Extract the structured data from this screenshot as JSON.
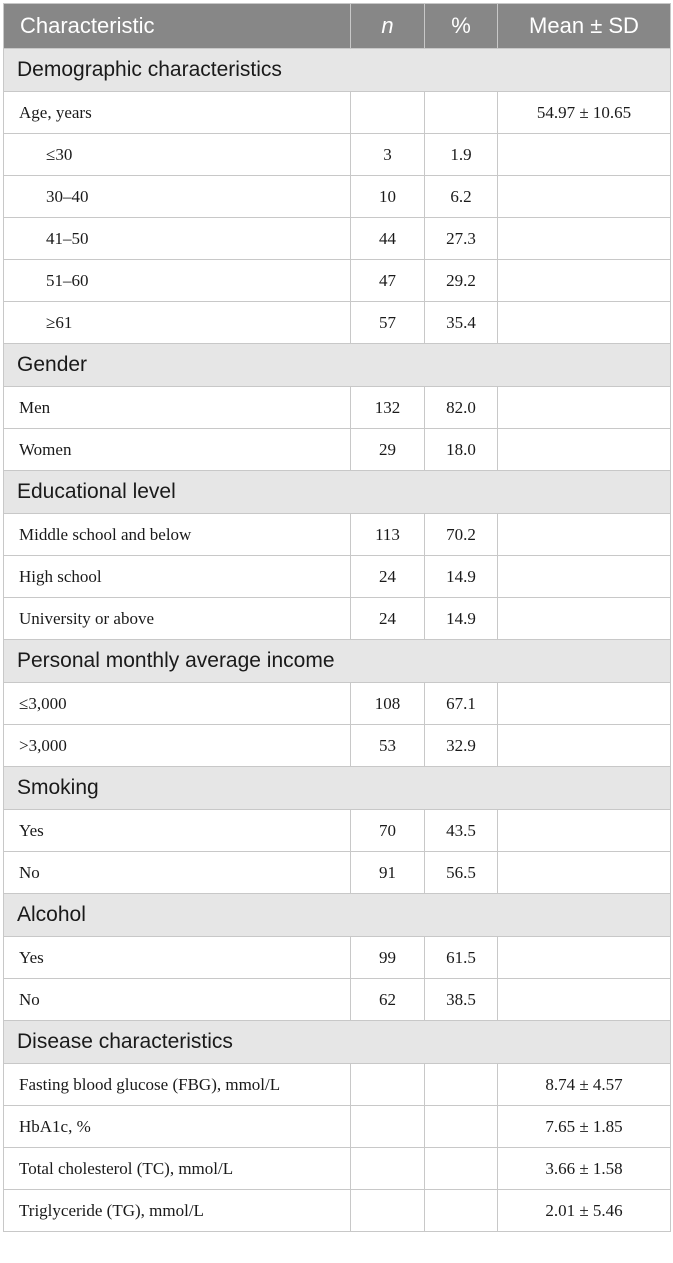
{
  "headers": {
    "characteristic": "Characteristic",
    "n": "n",
    "percent": "%",
    "mean_sd": "Mean ± SD"
  },
  "sections": {
    "demographic": "Demographic characteristics",
    "gender": "Gender",
    "education": "Educational level",
    "income": "Personal monthly average income",
    "smoking": "Smoking",
    "alcohol": "Alcohol",
    "disease": "Disease characteristics"
  },
  "rows": {
    "age": {
      "label": "Age, years",
      "n": "",
      "pct": "",
      "mean": "54.97 ± 10.65"
    },
    "age_le30": {
      "label": "≤30",
      "n": "3",
      "pct": "1.9",
      "mean": ""
    },
    "age_30_40": {
      "label": "30–40",
      "n": "10",
      "pct": "6.2",
      "mean": ""
    },
    "age_41_50": {
      "label": "41–50",
      "n": "44",
      "pct": "27.3",
      "mean": ""
    },
    "age_51_60": {
      "label": "51–60",
      "n": "47",
      "pct": "29.2",
      "mean": ""
    },
    "age_ge61": {
      "label": "≥61",
      "n": "57",
      "pct": "35.4",
      "mean": ""
    },
    "men": {
      "label": "Men",
      "n": "132",
      "pct": "82.0",
      "mean": ""
    },
    "women": {
      "label": "Women",
      "n": "29",
      "pct": "18.0",
      "mean": ""
    },
    "edu_middle": {
      "label": "Middle school and below",
      "n": "113",
      "pct": "70.2",
      "mean": ""
    },
    "edu_high": {
      "label": "High school",
      "n": "24",
      "pct": "14.9",
      "mean": ""
    },
    "edu_univ": {
      "label": "University or above",
      "n": "24",
      "pct": "14.9",
      "mean": ""
    },
    "income_le3000": {
      "label": "≤3,000",
      "n": "108",
      "pct": "67.1",
      "mean": ""
    },
    "income_gt3000": {
      "label": ">3,000",
      "n": "53",
      "pct": "32.9",
      "mean": ""
    },
    "smoke_yes": {
      "label": "Yes",
      "n": "70",
      "pct": "43.5",
      "mean": ""
    },
    "smoke_no": {
      "label": "No",
      "n": "91",
      "pct": "56.5",
      "mean": ""
    },
    "alcohol_yes": {
      "label": "Yes",
      "n": "99",
      "pct": "61.5",
      "mean": ""
    },
    "alcohol_no": {
      "label": "No",
      "n": "62",
      "pct": "38.5",
      "mean": ""
    },
    "fbg": {
      "label": "Fasting blood glucose (FBG), mmol/L",
      "n": "",
      "pct": "",
      "mean": "8.74 ± 4.57"
    },
    "hba1c": {
      "label": "HbA1c, %",
      "n": "",
      "pct": "",
      "mean": "7.65 ± 1.85"
    },
    "tc": {
      "label": "Total cholesterol (TC), mmol/L",
      "n": "",
      "pct": "",
      "mean": "3.66 ± 1.58"
    },
    "tg": {
      "label": "Triglyceride (TG), mmol/L",
      "n": "",
      "pct": "",
      "mean": "2.01 ± 5.46"
    }
  }
}
